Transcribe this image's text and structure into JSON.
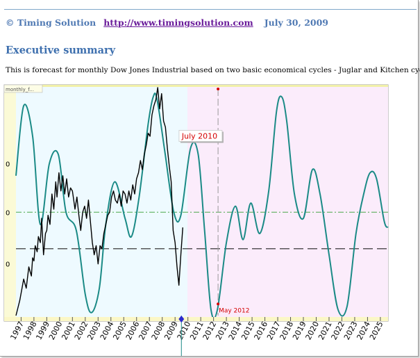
{
  "header": {
    "copyright": "© Timing Solution",
    "link": "http://www.timingsolution.com",
    "date": "July 30, 2009"
  },
  "section_title": "Executive summary",
  "intro_text": "This is forecast for monthly Dow Jones Industrial based on two basic economical cycles - Juglar and Kitchen cycles:",
  "colors": {
    "price": "#000000",
    "projection": "#1a8a86",
    "history_bg": "#eefaff",
    "forecast_bg": "#fbecfb",
    "annotation": "#d40000",
    "dash_green": "#4aa84a",
    "dash_black": "#222222"
  },
  "chart_data": {
    "type": "line",
    "title_tab": "monthly_f...",
    "x_range": [
      1996.6,
      2025.6
    ],
    "x_ticks": [
      "1997",
      "1998",
      "1999",
      "2000",
      "2001",
      "2002",
      "2003",
      "2004",
      "2005",
      "2006",
      "2007",
      "2008",
      "2009",
      "2010",
      "2011",
      "2012",
      "2013",
      "2014",
      "2015",
      "2016",
      "2017",
      "2018",
      "2019",
      "2020",
      "2021",
      "2022",
      "2023",
      "2024",
      "2025"
    ],
    "y_tick_labels": [
      "0",
      "0",
      "0"
    ],
    "series": [
      {
        "kind": "price",
        "x": [
          1996.6,
          1996.9,
          1997.2,
          1997.4,
          1997.6,
          1997.8,
          1997.9,
          1998.0,
          1998.1,
          1998.25,
          1998.35,
          1998.5,
          1998.6,
          1998.75,
          1998.9,
          1999.0,
          1999.1,
          1999.25,
          1999.4,
          1999.55,
          1999.7,
          1999.8,
          1999.95,
          2000.1,
          2000.25,
          2000.4,
          2000.55,
          2000.7,
          2000.85,
          2001.0,
          2001.1,
          2001.2,
          2001.35,
          2001.5,
          2001.65,
          2001.8,
          2001.95,
          2002.1,
          2002.25,
          2002.4,
          2002.55,
          2002.7,
          2002.85,
          2003.0,
          2003.15,
          2003.3,
          2003.45,
          2003.6,
          2003.75,
          2003.9,
          2004.05,
          2004.2,
          2004.35,
          2004.5,
          2004.65,
          2004.8,
          2004.95,
          2005.1,
          2005.25,
          2005.4,
          2005.55,
          2005.7,
          2005.85,
          2006.0,
          2006.15,
          2006.3,
          2006.45,
          2006.6,
          2006.75,
          2006.9,
          2007.05,
          2007.2,
          2007.35,
          2007.5,
          2007.65,
          2007.8,
          2007.95,
          2008.1,
          2008.25,
          2008.4,
          2008.55,
          2008.7,
          2008.85,
          2009.0,
          2009.15,
          2009.3,
          2009.45,
          2009.6
        ],
        "y": [
          6400,
          6900,
          7600,
          7300,
          8000,
          7700,
          8300,
          8200,
          8700,
          8500,
          9000,
          8800,
          9600,
          8400,
          9100,
          9200,
          9700,
          9400,
          10400,
          9900,
          10800,
          10300,
          11100,
          10500,
          11000,
          10400,
          10900,
          10300,
          10600,
          10500,
          10200,
          9900,
          10300,
          9700,
          9200,
          9800,
          10000,
          9600,
          10200,
          9500,
          8800,
          8400,
          8700,
          8100,
          8700,
          8600,
          9100,
          9400,
          9700,
          9800,
          10300,
          10500,
          10200,
          10100,
          10400,
          10000,
          10500,
          10400,
          10100,
          10500,
          10200,
          10700,
          10400,
          10900,
          11100,
          11500,
          11200,
          11700,
          12000,
          12400,
          12300,
          13000,
          13300,
          13500,
          13900,
          13200,
          13700,
          12800,
          12600,
          11900,
          11300,
          10800,
          9200,
          8800,
          8000,
          7400,
          8400,
          9300
        ]
      },
      {
        "kind": "projection",
        "x": [
          1996.6,
          1997.2,
          1997.9,
          1998.5,
          1999.2,
          1999.9,
          2000.5,
          2001.3,
          2002.0,
          2002.5,
          2003.1,
          2003.6,
          2004.3,
          2005.1,
          2005.6,
          2006.2,
          2006.9,
          2007.3,
          2007.6,
          2008.2,
          2008.9,
          2009.45,
          2010.2,
          2010.8,
          2011.3,
          2011.8,
          2012.3,
          2013.0,
          2013.7,
          2014.3,
          2014.9,
          2015.6,
          2016.3,
          2016.9,
          2017.3,
          2017.7,
          2018.3,
          2019.0,
          2019.7,
          2020.3,
          2021.0,
          2021.7,
          2022.4,
          2023.1,
          2023.7,
          2024.2,
          2024.7,
          2025.3,
          2025.6
        ],
        "y": [
          11000,
          13300,
          12300,
          9400,
          11400,
          11700,
          9800,
          9200,
          7100,
          6500,
          7300,
          9400,
          10800,
          9600,
          9000,
          10300,
          12700,
          13600,
          13500,
          11800,
          9800,
          9700,
          11900,
          11700,
          9200,
          6600,
          6600,
          8800,
          10000,
          8900,
          10100,
          9100,
          10500,
          13100,
          13600,
          12800,
          10400,
          9600,
          11200,
          10400,
          8400,
          6600,
          6700,
          9100,
          10400,
          11100,
          10900,
          9500,
          9300
        ]
      }
    ],
    "green_dash_y": 9800,
    "black_dash_y": 8600,
    "annotations": [
      {
        "label": "July 2010",
        "x": 2010.5,
        "y": 11900
      },
      {
        "label": "May 2012",
        "x": 2012.35,
        "y": 6600
      }
    ]
  }
}
